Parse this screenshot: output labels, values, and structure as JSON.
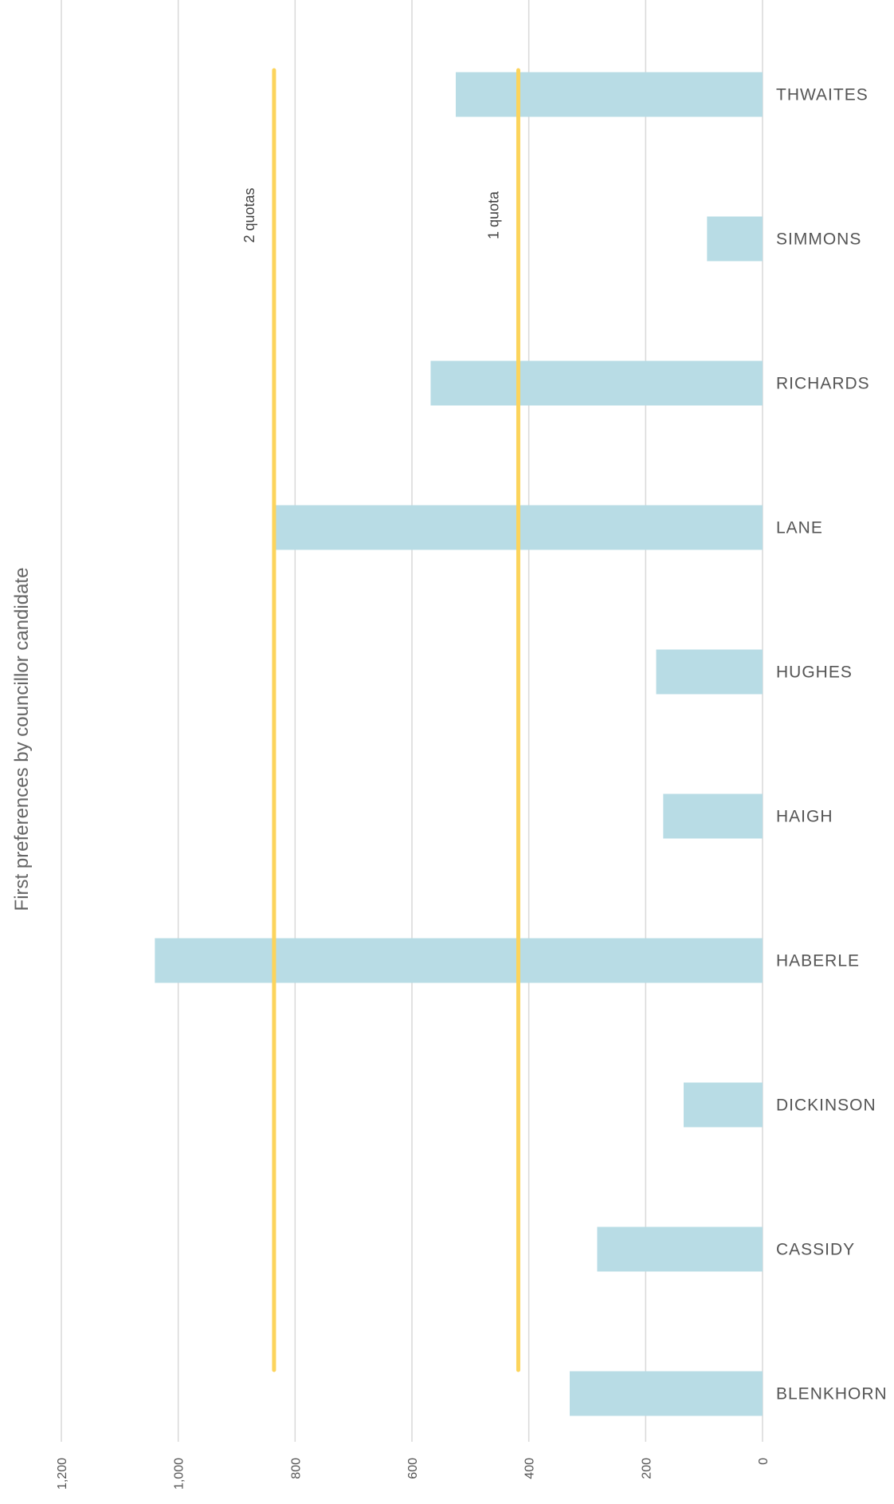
{
  "chart_data": {
    "type": "bar",
    "orientation": "horizontal",
    "title": "First preferences by councillor candidate",
    "categories": [
      "THWAITES",
      "SIMMONS",
      "RICHARDS",
      "LANE",
      "HUGHES",
      "HAIGH",
      "HABERLE",
      "DICKINSON",
      "CASSIDY",
      "BLENKHORN"
    ],
    "series": [
      {
        "values": [
          525,
          95,
          568,
          838,
          182,
          170,
          1040,
          135,
          283,
          330
        ]
      }
    ],
    "reference_lines": [
      {
        "label": "1 quota",
        "value": 418
      },
      {
        "label": "2 quotas",
        "value": 836
      }
    ],
    "xlim": [
      0,
      1200
    ],
    "ticks": [
      0,
      200,
      400,
      600,
      800,
      1000,
      1200
    ],
    "tick_labels": [
      "0",
      "200",
      "400",
      "600",
      "800",
      "1,000",
      "1,200"
    ],
    "axis_direction": "reversed",
    "grid": true,
    "colors": {
      "bar": "#b8dce5",
      "reference": "#fcd45c",
      "grid": "#d9d9d9"
    }
  }
}
